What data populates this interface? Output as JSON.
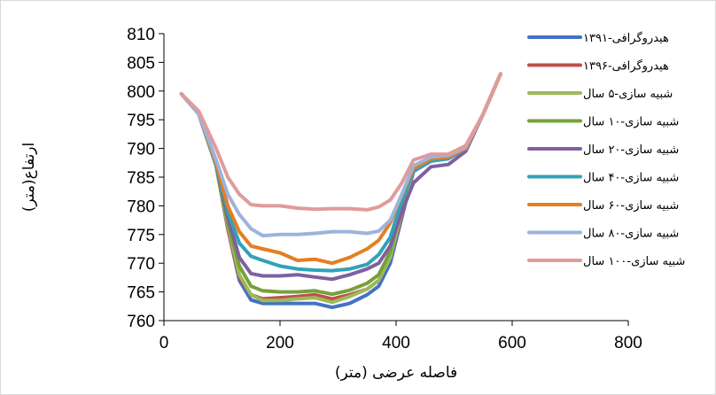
{
  "chart_data": {
    "type": "line",
    "xlabel": "فاصله عرضی (متر)",
    "ylabel": "ارتفاع(متر)",
    "xlim": [
      0,
      800
    ],
    "ylim": [
      760,
      810
    ],
    "x_ticks": [
      "0",
      "200",
      "400",
      "600",
      "800"
    ],
    "y_ticks": [
      "760",
      "765",
      "770",
      "775",
      "780",
      "785",
      "790",
      "795",
      "800",
      "805",
      "810"
    ],
    "grid": false,
    "legend_position": "right",
    "series": [
      {
        "name": "هیدروگرافی-۱۳۹۱",
        "color": "#4472c4",
        "points": [
          [
            30,
            799.5
          ],
          [
            60,
            796
          ],
          [
            90,
            787
          ],
          [
            110,
            776
          ],
          [
            130,
            767
          ],
          [
            150,
            763.6
          ],
          [
            170,
            763
          ],
          [
            200,
            763
          ],
          [
            230,
            763
          ],
          [
            260,
            763
          ],
          [
            290,
            762.3
          ],
          [
            320,
            763
          ],
          [
            350,
            764.5
          ],
          [
            370,
            766
          ],
          [
            390,
            770
          ],
          [
            410,
            778
          ],
          [
            430,
            786
          ],
          [
            460,
            787.8
          ],
          [
            490,
            788.3
          ],
          [
            520,
            790
          ],
          [
            550,
            796
          ],
          [
            580,
            803
          ]
        ]
      },
      {
        "name": "هیدروگرافی-۱۳۹۶",
        "color": "#c0504d",
        "points": [
          [
            30,
            799.5
          ],
          [
            60,
            796
          ],
          [
            90,
            787
          ],
          [
            110,
            776
          ],
          [
            130,
            767.5
          ],
          [
            150,
            764.5
          ],
          [
            170,
            763.8
          ],
          [
            200,
            764
          ],
          [
            230,
            764.2
          ],
          [
            260,
            764.5
          ],
          [
            290,
            763.8
          ],
          [
            320,
            764.5
          ],
          [
            350,
            765.5
          ],
          [
            370,
            767
          ],
          [
            390,
            771
          ],
          [
            410,
            778.5
          ],
          [
            430,
            786
          ],
          [
            460,
            788
          ],
          [
            490,
            788.5
          ],
          [
            520,
            790
          ],
          [
            550,
            796
          ],
          [
            580,
            803
          ]
        ]
      },
      {
        "name": "شبیه سازی-۵ سال",
        "color": "#9bbb59",
        "points": [
          [
            30,
            799.5
          ],
          [
            60,
            796
          ],
          [
            90,
            787
          ],
          [
            110,
            776.5
          ],
          [
            130,
            768
          ],
          [
            150,
            764.5
          ],
          [
            170,
            763.5
          ],
          [
            200,
            763.5
          ],
          [
            230,
            763.8
          ],
          [
            260,
            764
          ],
          [
            290,
            763.2
          ],
          [
            320,
            764.2
          ],
          [
            350,
            765.5
          ],
          [
            370,
            767
          ],
          [
            390,
            771
          ],
          [
            410,
            779
          ],
          [
            430,
            786.5
          ],
          [
            460,
            788
          ],
          [
            490,
            788.5
          ],
          [
            520,
            790
          ],
          [
            550,
            796
          ],
          [
            580,
            803
          ]
        ]
      },
      {
        "name": "شبیه سازی-۱۰ سال",
        "color": "#77a03b",
        "points": [
          [
            30,
            799.5
          ],
          [
            60,
            796
          ],
          [
            90,
            787
          ],
          [
            110,
            777
          ],
          [
            130,
            769.5
          ],
          [
            150,
            766
          ],
          [
            170,
            765.2
          ],
          [
            200,
            765
          ],
          [
            230,
            765
          ],
          [
            260,
            765.2
          ],
          [
            290,
            764.6
          ],
          [
            320,
            765.3
          ],
          [
            350,
            766.5
          ],
          [
            370,
            768
          ],
          [
            390,
            772
          ],
          [
            410,
            780
          ],
          [
            430,
            787
          ],
          [
            460,
            788
          ],
          [
            490,
            788.5
          ],
          [
            520,
            790
          ],
          [
            550,
            796
          ],
          [
            580,
            803
          ]
        ]
      },
      {
        "name": "شبیه سازی-۲۰ سال",
        "color": "#7f5fa1",
        "points": [
          [
            30,
            799.5
          ],
          [
            60,
            796
          ],
          [
            90,
            787.2
          ],
          [
            110,
            778
          ],
          [
            130,
            771
          ],
          [
            150,
            768.2
          ],
          [
            170,
            767.8
          ],
          [
            200,
            767.8
          ],
          [
            230,
            768
          ],
          [
            260,
            767.6
          ],
          [
            290,
            767.2
          ],
          [
            320,
            768
          ],
          [
            350,
            769
          ],
          [
            370,
            770
          ],
          [
            390,
            773
          ],
          [
            410,
            779
          ],
          [
            430,
            784
          ],
          [
            460,
            786.8
          ],
          [
            490,
            787.2
          ],
          [
            520,
            789.5
          ],
          [
            550,
            796
          ],
          [
            580,
            803
          ]
        ]
      },
      {
        "name": "شبیه سازی-۴۰ سال",
        "color": "#31a2b8",
        "points": [
          [
            30,
            799.5
          ],
          [
            60,
            796
          ],
          [
            90,
            787.2
          ],
          [
            110,
            779
          ],
          [
            130,
            773.5
          ],
          [
            150,
            771.2
          ],
          [
            170,
            770.5
          ],
          [
            200,
            769.5
          ],
          [
            230,
            769
          ],
          [
            260,
            768.8
          ],
          [
            290,
            768.7
          ],
          [
            320,
            769
          ],
          [
            350,
            769.8
          ],
          [
            370,
            771.5
          ],
          [
            390,
            774.5
          ],
          [
            410,
            781
          ],
          [
            430,
            786
          ],
          [
            460,
            787.8
          ],
          [
            490,
            788.2
          ],
          [
            520,
            790
          ],
          [
            550,
            796
          ],
          [
            580,
            803
          ]
        ]
      },
      {
        "name": "شبیه سازی-۶۰ سال",
        "color": "#e67e22",
        "points": [
          [
            30,
            799.5
          ],
          [
            60,
            796
          ],
          [
            90,
            787.5
          ],
          [
            110,
            780
          ],
          [
            130,
            775.5
          ],
          [
            150,
            773
          ],
          [
            170,
            772.5
          ],
          [
            200,
            771.8
          ],
          [
            230,
            770.5
          ],
          [
            260,
            770.7
          ],
          [
            290,
            770
          ],
          [
            320,
            771
          ],
          [
            350,
            772.5
          ],
          [
            370,
            774
          ],
          [
            390,
            777
          ],
          [
            410,
            782
          ],
          [
            430,
            786.5
          ],
          [
            460,
            788.2
          ],
          [
            490,
            788.5
          ],
          [
            520,
            790
          ],
          [
            550,
            796
          ],
          [
            580,
            803
          ]
        ]
      },
      {
        "name": "شبیه سازی-۸۰ سال",
        "color": "#9db3dc",
        "points": [
          [
            30,
            799.5
          ],
          [
            60,
            796
          ],
          [
            90,
            788
          ],
          [
            110,
            782
          ],
          [
            130,
            778.5
          ],
          [
            150,
            776
          ],
          [
            170,
            774.8
          ],
          [
            200,
            775
          ],
          [
            230,
            775
          ],
          [
            260,
            775.2
          ],
          [
            290,
            775.5
          ],
          [
            320,
            775.5
          ],
          [
            350,
            775.2
          ],
          [
            370,
            775.6
          ],
          [
            390,
            777.5
          ],
          [
            410,
            782
          ],
          [
            430,
            787
          ],
          [
            460,
            788.5
          ],
          [
            490,
            788.8
          ],
          [
            520,
            790.2
          ],
          [
            550,
            796
          ],
          [
            580,
            803
          ]
        ]
      },
      {
        "name": "شبیه سازی-۱۰۰ سال",
        "color": "#e09b9b",
        "points": [
          [
            30,
            799.5
          ],
          [
            60,
            796.5
          ],
          [
            90,
            790
          ],
          [
            110,
            785
          ],
          [
            130,
            782
          ],
          [
            150,
            780.2
          ],
          [
            170,
            780
          ],
          [
            200,
            780
          ],
          [
            230,
            779.6
          ],
          [
            260,
            779.4
          ],
          [
            290,
            779.5
          ],
          [
            320,
            779.5
          ],
          [
            350,
            779.3
          ],
          [
            370,
            779.8
          ],
          [
            390,
            781
          ],
          [
            410,
            784
          ],
          [
            430,
            788
          ],
          [
            460,
            789
          ],
          [
            490,
            789
          ],
          [
            520,
            790.5
          ],
          [
            550,
            796
          ],
          [
            580,
            803
          ]
        ]
      }
    ]
  }
}
